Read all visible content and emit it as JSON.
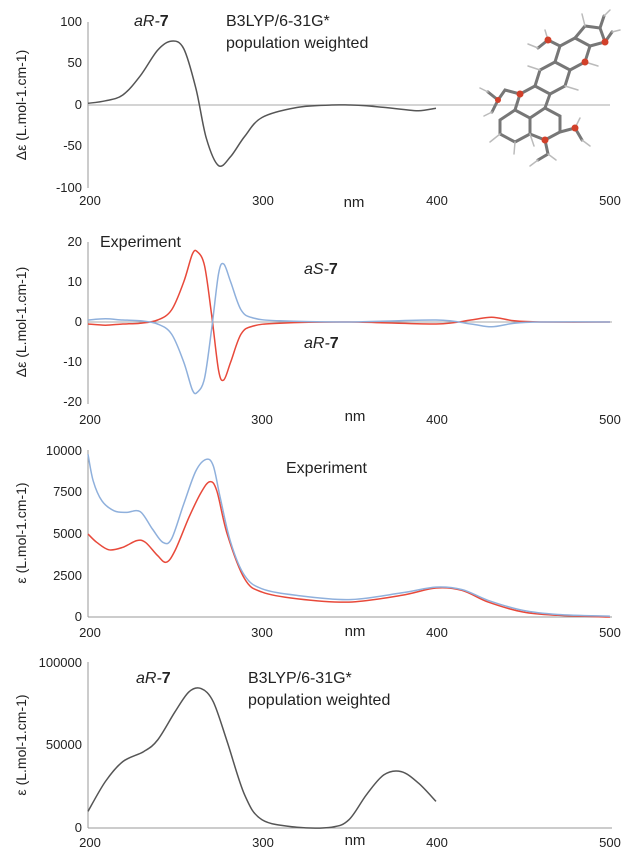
{
  "chart_data": [
    {
      "type": "line",
      "label_main": "aR-",
      "label_bold": "7",
      "method_line1": "B3LYP/6-31G*",
      "method_line2": "population weighted",
      "xlabel": "nm",
      "ylabel": "Δε (L.mol-1.cm-1)",
      "xlim": [
        200,
        500
      ],
      "ylim": [
        -100,
        100
      ],
      "xticks": [
        "200",
        "300",
        "400",
        "500"
      ],
      "yticks": [
        "100",
        "50",
        "0",
        "-50",
        "-100"
      ],
      "zero_line": true,
      "series": [
        {
          "color": "#555555",
          "x": [
            200,
            210,
            220,
            230,
            240,
            248,
            255,
            262,
            268,
            275,
            282,
            290,
            300,
            320,
            340,
            350,
            360,
            380,
            390,
            400
          ],
          "y": [
            2,
            5,
            12,
            35,
            66,
            77,
            68,
            20,
            -40,
            -73,
            -62,
            -38,
            -15,
            -3,
            0,
            0,
            -1,
            -5,
            -7,
            -4
          ]
        }
      ]
    },
    {
      "type": "line",
      "annotation": "Experiment",
      "label_aS_main": "aS-",
      "label_aS_bold": "7",
      "label_aR_main": "aR-",
      "label_aR_bold": "7",
      "xlabel": "nm",
      "ylabel": "Δε (L.mol-1.cm-1)",
      "xlim": [
        200,
        500
      ],
      "ylim": [
        -20,
        20
      ],
      "xticks": [
        "200",
        "300",
        "400",
        "500"
      ],
      "yticks": [
        "20",
        "10",
        "0",
        "-10",
        "-20"
      ],
      "zero_line": true,
      "series": [
        {
          "color": "#e8493a",
          "x": [
            200,
            210,
            220,
            230,
            240,
            248,
            255,
            260,
            263,
            267,
            271,
            275,
            278,
            282,
            288,
            295,
            310,
            350,
            400,
            420,
            432,
            445,
            460,
            500
          ],
          "y": [
            -0.5,
            -0.8,
            -0.5,
            -0.3,
            0.5,
            3,
            10,
            17,
            17.5,
            14,
            2,
            -12,
            -14.5,
            -10,
            -3,
            -1,
            -0.3,
            0,
            -0.5,
            0.5,
            1.2,
            0.3,
            0,
            0
          ]
        },
        {
          "color": "#8fb0dc",
          "x": [
            200,
            210,
            220,
            230,
            240,
            248,
            255,
            260,
            263,
            267,
            271,
            275,
            278,
            282,
            288,
            295,
            310,
            350,
            400,
            420,
            432,
            445,
            460,
            500
          ],
          "y": [
            0.5,
            0.8,
            0.5,
            0.3,
            -0.5,
            -3,
            -10,
            -17,
            -17.5,
            -14,
            -2,
            12,
            14.5,
            10,
            3,
            1,
            0.3,
            0,
            0.5,
            -0.5,
            -1.2,
            -0.3,
            0,
            0
          ]
        }
      ]
    },
    {
      "type": "line",
      "annotation": "Experiment",
      "xlabel": "nm",
      "ylabel": "ε (L.mol-1.cm-1)",
      "xlim": [
        200,
        500
      ],
      "ylim": [
        0,
        10000
      ],
      "xticks": [
        "200",
        "300",
        "400",
        "500"
      ],
      "yticks": [
        "10000",
        "7500",
        "5000",
        "2500",
        "0"
      ],
      "series": [
        {
          "color": "#e8493a",
          "x": [
            200,
            205,
            212,
            220,
            228,
            233,
            240,
            245,
            250,
            258,
            265,
            270,
            274,
            280,
            290,
            300,
            320,
            350,
            380,
            400,
            415,
            430,
            450,
            470,
            500
          ],
          "y": [
            5000,
            4500,
            4050,
            4200,
            4600,
            4500,
            3700,
            3300,
            4000,
            6000,
            7500,
            8150,
            7600,
            5000,
            2300,
            1500,
            1100,
            900,
            1300,
            1750,
            1600,
            900,
            300,
            100,
            0
          ]
        },
        {
          "color": "#8fb0dc",
          "x": [
            200,
            203,
            208,
            215,
            222,
            230,
            237,
            243,
            248,
            255,
            262,
            268,
            272,
            276,
            282,
            290,
            300,
            320,
            350,
            380,
            400,
            415,
            430,
            450,
            470,
            500
          ],
          "y": [
            9800,
            8200,
            7000,
            6400,
            6300,
            6350,
            5300,
            4500,
            4700,
            6800,
            8800,
            9500,
            9100,
            7200,
            4500,
            2500,
            1700,
            1300,
            1050,
            1450,
            1800,
            1650,
            1000,
            400,
            150,
            50
          ]
        }
      ]
    },
    {
      "type": "line",
      "label_main": "aR-",
      "label_bold": "7",
      "method_line1": "B3LYP/6-31G*",
      "method_line2": "population weighted",
      "xlabel": "nm",
      "ylabel": "ε (L.mol-1.cm-1)",
      "xlim": [
        200,
        500
      ],
      "ylim": [
        0,
        100000
      ],
      "xticks": [
        "200",
        "300",
        "400",
        "500"
      ],
      "yticks": [
        "100000",
        "50000",
        "0"
      ],
      "series": [
        {
          "color": "#555555",
          "x": [
            200,
            210,
            220,
            232,
            240,
            250,
            258,
            265,
            272,
            280,
            290,
            300,
            320,
            340,
            350,
            360,
            370,
            380,
            390,
            400
          ],
          "y": [
            10000,
            28000,
            40000,
            46000,
            53000,
            70000,
            82000,
            84000,
            76000,
            52000,
            20000,
            5000,
            500,
            500,
            5000,
            20000,
            32000,
            34000,
            27000,
            16000
          ]
        }
      ]
    }
  ]
}
